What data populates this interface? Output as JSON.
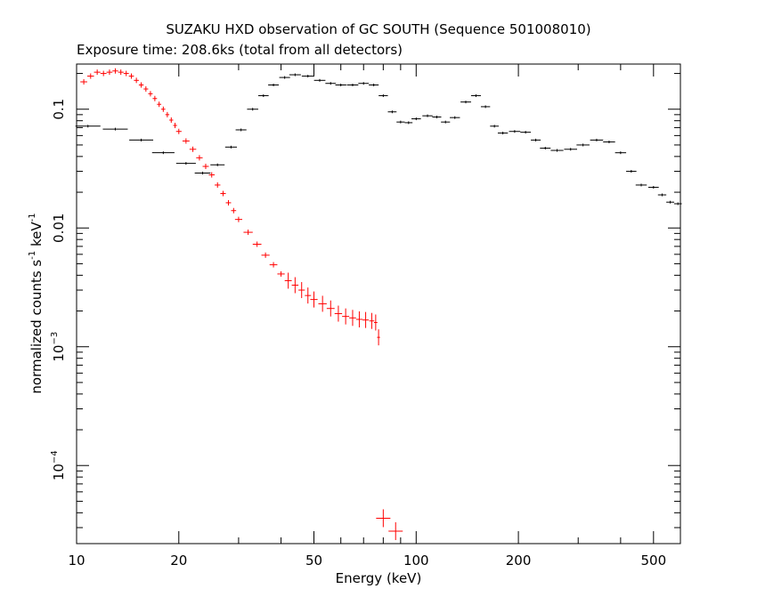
{
  "chart_data": {
    "type": "scatter",
    "title": "SUZAKU HXD observation of GC SOUTH (Sequence 501008010)",
    "subtitle": "Exposure time: 208.6ks (total from all detectors)",
    "xlabel": "Energy (keV)",
    "ylabel_main": "normalized counts s",
    "ylabel_mid": " keV",
    "ylabel_exp": "-1",
    "x_scale": "log",
    "y_scale": "log",
    "xlim": [
      10,
      600
    ],
    "ylim": [
      2.2e-05,
      0.24
    ],
    "grid": false,
    "x_ticks": [
      {
        "value": 10,
        "label": "10"
      },
      {
        "value": 20,
        "label": "20"
      },
      {
        "value": 50,
        "label": "50"
      },
      {
        "value": 100,
        "label": "100"
      },
      {
        "value": 200,
        "label": "200"
      },
      {
        "value": 500,
        "label": "500"
      }
    ],
    "y_ticks": [
      {
        "value": 0.1,
        "label": "0.1",
        "base": "",
        "exp": ""
      },
      {
        "value": 0.01,
        "label": "0.01",
        "base": "",
        "exp": ""
      },
      {
        "value": 0.001,
        "label": "",
        "base": "10",
        "exp": "−3"
      },
      {
        "value": 0.0001,
        "label": "",
        "base": "10",
        "exp": "−4"
      }
    ],
    "series": [
      {
        "color": "#ff0000",
        "style": "crosses",
        "points": [
          [
            10.5,
            0.17
          ],
          [
            11.0,
            0.19
          ],
          [
            11.5,
            0.205
          ],
          [
            12.0,
            0.2
          ],
          [
            12.5,
            0.205
          ],
          [
            13.0,
            0.21
          ],
          [
            13.5,
            0.205
          ],
          [
            14.0,
            0.2
          ],
          [
            14.5,
            0.19
          ],
          [
            15.0,
            0.175
          ],
          [
            15.5,
            0.16
          ],
          [
            16.0,
            0.148
          ],
          [
            16.5,
            0.135
          ],
          [
            17.0,
            0.123
          ],
          [
            17.5,
            0.11
          ],
          [
            18.0,
            0.1
          ],
          [
            18.5,
            0.09
          ],
          [
            19.0,
            0.081
          ],
          [
            19.5,
            0.073
          ],
          [
            20.0,
            0.065
          ],
          [
            21.0,
            0.054
          ],
          [
            22.0,
            0.046
          ],
          [
            23.0,
            0.039
          ],
          [
            24.0,
            0.033
          ],
          [
            25.0,
            0.028
          ],
          [
            26.0,
            0.023
          ],
          [
            27.0,
            0.0195
          ],
          [
            28.0,
            0.0163
          ],
          [
            29.0,
            0.014
          ],
          [
            30.0,
            0.0118
          ],
          [
            32.0,
            0.0092
          ],
          [
            34.0,
            0.0073
          ],
          [
            36.0,
            0.0059
          ],
          [
            38.0,
            0.0049
          ],
          [
            40.0,
            0.0041
          ],
          [
            42.0,
            0.0036
          ],
          [
            44.0,
            0.0033
          ],
          [
            46.0,
            0.003
          ],
          [
            48.0,
            0.0027
          ],
          [
            50.0,
            0.0025
          ],
          [
            53.0,
            0.0023
          ],
          [
            56.0,
            0.0021
          ],
          [
            59.0,
            0.0019
          ],
          [
            62.0,
            0.0018
          ],
          [
            65.0,
            0.00175
          ],
          [
            68.0,
            0.0017
          ],
          [
            71.0,
            0.00168
          ],
          [
            74.0,
            0.00165
          ],
          [
            76.0,
            0.0016
          ],
          [
            77.5,
            0.0012
          ]
        ],
        "outliers": [
          [
            80.0,
            3.6e-05
          ],
          [
            87.0,
            2.8e-05
          ]
        ]
      },
      {
        "color": "#000000",
        "style": "crosses",
        "points": [
          [
            10.8,
            0.072
          ],
          [
            13.0,
            0.068
          ],
          [
            15.5,
            0.055
          ],
          [
            18.0,
            0.043
          ],
          [
            21.0,
            0.035
          ],
          [
            23.5,
            0.029
          ],
          [
            26.0,
            0.034
          ],
          [
            28.5,
            0.048
          ],
          [
            30.5,
            0.067
          ],
          [
            33.0,
            0.1
          ],
          [
            35.5,
            0.13
          ],
          [
            38.0,
            0.16
          ],
          [
            41.0,
            0.185
          ],
          [
            44.0,
            0.195
          ],
          [
            48.0,
            0.19
          ],
          [
            52.0,
            0.175
          ],
          [
            56.0,
            0.165
          ],
          [
            60.0,
            0.16
          ],
          [
            65.0,
            0.16
          ],
          [
            70.0,
            0.165
          ],
          [
            75.0,
            0.16
          ],
          [
            80.0,
            0.13
          ],
          [
            85.0,
            0.095
          ],
          [
            90.0,
            0.078
          ],
          [
            95.0,
            0.077
          ],
          [
            100.0,
            0.083
          ],
          [
            108.0,
            0.088
          ],
          [
            115.0,
            0.086
          ],
          [
            122.0,
            0.078
          ],
          [
            130.0,
            0.085
          ],
          [
            140.0,
            0.115
          ],
          [
            150.0,
            0.13
          ],
          [
            160.0,
            0.105
          ],
          [
            170.0,
            0.072
          ],
          [
            180.0,
            0.063
          ],
          [
            195.0,
            0.065
          ],
          [
            210.0,
            0.064
          ],
          [
            225.0,
            0.055
          ],
          [
            240.0,
            0.047
          ],
          [
            260.0,
            0.045
          ],
          [
            285.0,
            0.046
          ],
          [
            310.0,
            0.05
          ],
          [
            340.0,
            0.055
          ],
          [
            370.0,
            0.053
          ],
          [
            400.0,
            0.043
          ],
          [
            430.0,
            0.03
          ],
          [
            460.0,
            0.023
          ],
          [
            500.0,
            0.022
          ],
          [
            530.0,
            0.019
          ],
          [
            560.0,
            0.0165
          ],
          [
            590.0,
            0.016
          ]
        ]
      }
    ]
  }
}
